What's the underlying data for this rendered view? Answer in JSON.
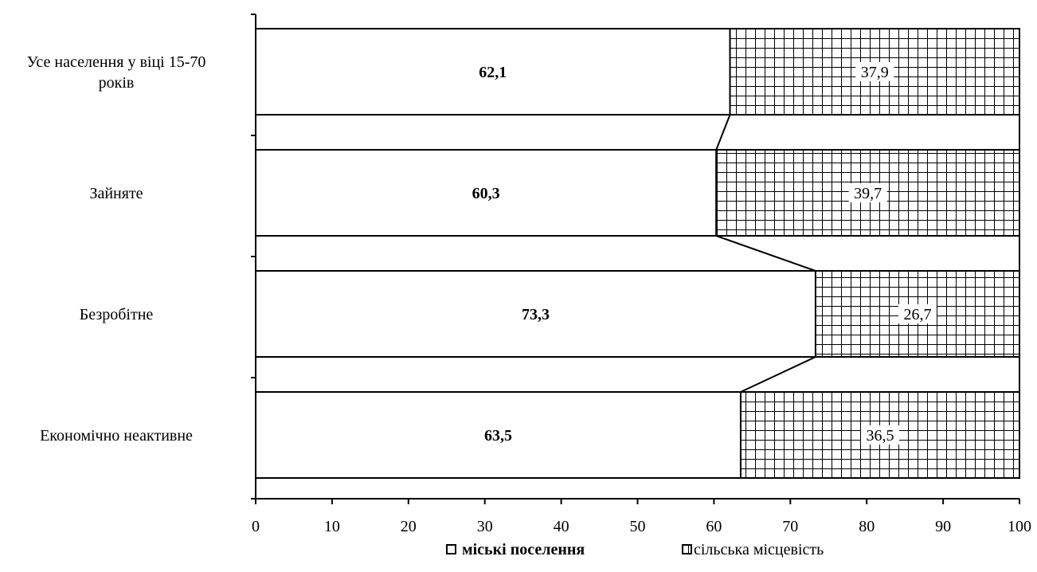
{
  "chart_data": {
    "type": "bar",
    "stacked": true,
    "orientation": "horizontal",
    "categories": [
      [
        "Усе населення у віці 15-70",
        "років"
      ],
      [
        "Зайняте"
      ],
      [
        "Безробітне"
      ],
      [
        "Економічно неактивне"
      ]
    ],
    "series": [
      {
        "name": "міські поселення",
        "values": [
          62.1,
          60.3,
          73.3,
          63.5
        ],
        "labels": [
          "62,1",
          "60,3",
          "73,3",
          "63,5"
        ],
        "pattern": "none"
      },
      {
        "name": "сільська місцевість",
        "values": [
          37.9,
          39.7,
          26.7,
          36.5
        ],
        "labels": [
          "37,9",
          "39,7",
          "26,7",
          "36,5"
        ],
        "pattern": "grid"
      }
    ],
    "xlim": [
      0,
      100
    ],
    "xticks": [
      "0",
      "10",
      "20",
      "30",
      "40",
      "50",
      "60",
      "70",
      "80",
      "90",
      "100"
    ],
    "series_lines": true,
    "legend_position": "bottom",
    "title": "",
    "xlabel": "",
    "ylabel": ""
  }
}
